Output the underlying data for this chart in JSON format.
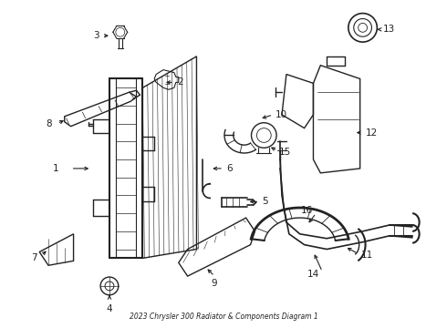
{
  "title": "2023 Chrysler 300 Radiator & Components Diagram 1",
  "bg_color": "#ffffff",
  "line_color": "#222222",
  "figsize": [
    4.9,
    3.6
  ],
  "dpi": 100
}
